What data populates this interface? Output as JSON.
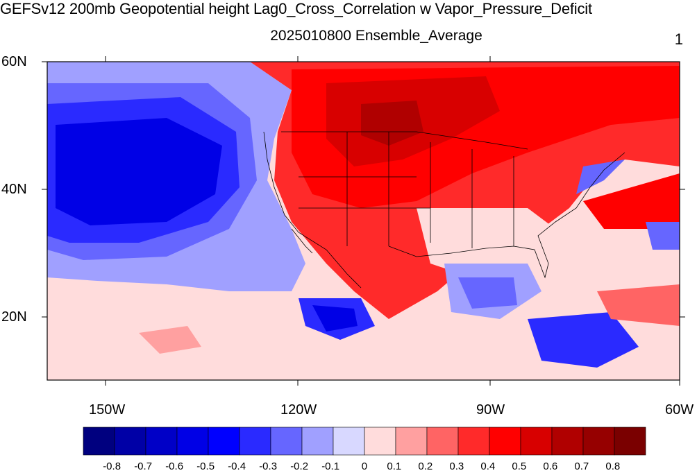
{
  "map": {
    "title": "GEFSv12 200mb Geopotential height Lag0_Cross_Correlation w Vapor_Pressure_Deficit",
    "subtitle": "2025010800 Ensemble_Average",
    "panel_label": "1",
    "lat_labels": [
      "60N",
      "40N",
      "20N"
    ],
    "lon_labels": [
      "150W",
      "120W",
      "90W",
      "60W"
    ],
    "region": "North Pacific and contiguous United States",
    "projection": "cylindrical equidistant"
  },
  "colorbar": {
    "labels": [
      "-0.8",
      "-0.7",
      "-0.6",
      "-0.5",
      "-0.4",
      "-0.3",
      "-0.2",
      "-0.1",
      "0",
      "0.1",
      "0.2",
      "0.3",
      "0.4",
      "0.5",
      "0.6",
      "0.7",
      "0.8"
    ],
    "colors": [
      "#00007f",
      "#0000a6",
      "#0000c7",
      "#0000e6",
      "#0000ff",
      "#2a2aff",
      "#6666ff",
      "#a0a0ff",
      "#d8d8ff",
      "#ffdcdc",
      "#ffa0a0",
      "#ff6464",
      "#ff2a2a",
      "#ff0000",
      "#d80000",
      "#b00000",
      "#960000",
      "#7a0000"
    ]
  }
}
